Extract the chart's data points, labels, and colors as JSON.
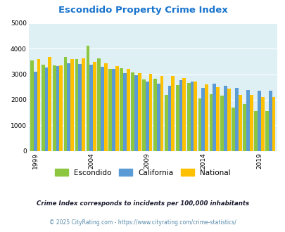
{
  "title": "Escondido Property Crime Index",
  "title_color": "#1874CD",
  "years": [
    1999,
    2000,
    2001,
    2002,
    2003,
    2004,
    2005,
    2006,
    2007,
    2008,
    2009,
    2010,
    2011,
    2012,
    2013,
    2014,
    2015,
    2016,
    2017,
    2018,
    2019,
    2020
  ],
  "escondido": [
    3550,
    3380,
    3350,
    3680,
    3600,
    4120,
    3620,
    3220,
    3250,
    3060,
    2800,
    2830,
    2200,
    2580,
    2660,
    2040,
    2220,
    2150,
    1700,
    1820,
    1560,
    1560
  ],
  "california": [
    3100,
    3270,
    3320,
    3430,
    3410,
    3380,
    3300,
    3200,
    3040,
    2950,
    2720,
    2630,
    2560,
    2760,
    2700,
    2460,
    2620,
    2540,
    2460,
    2390,
    2360,
    2360
  ],
  "national": [
    3590,
    3680,
    3350,
    3590,
    3610,
    3490,
    3440,
    3320,
    3210,
    3050,
    3030,
    2940,
    2940,
    2860,
    2720,
    2590,
    2480,
    2450,
    2200,
    2180,
    2110,
    2110
  ],
  "escondido_color": "#8DC63F",
  "california_color": "#5B9BD5",
  "national_color": "#FFC000",
  "plot_bg": "#DFF0F5",
  "ylim": [
    0,
    5000
  ],
  "yticks": [
    0,
    1000,
    2000,
    3000,
    4000,
    5000
  ],
  "xtick_labels": [
    "1999",
    "2004",
    "2009",
    "2014",
    "2019"
  ],
  "xtick_positions": [
    0,
    5,
    10,
    15,
    20
  ],
  "legend_labels": [
    "Escondido",
    "California",
    "National"
  ],
  "footnote1": "Crime Index corresponds to incidents per 100,000 inhabitants",
  "footnote2": "© 2025 CityRating.com - https://www.cityrating.com/crime-statistics/",
  "footnote1_color": "#1a1a2e",
  "footnote2_color": "#5588aa"
}
